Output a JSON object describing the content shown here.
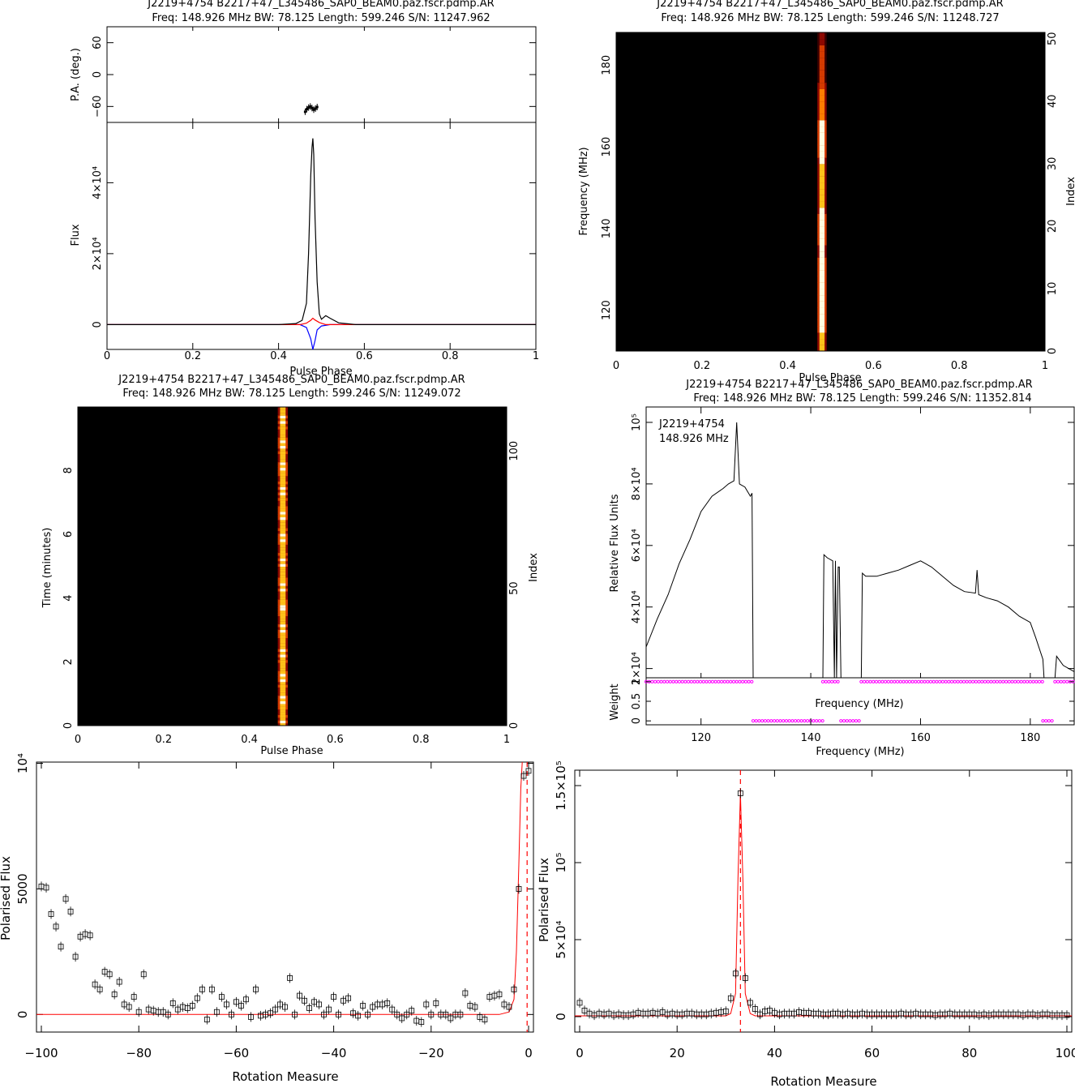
{
  "colors": {
    "axis": "#000000",
    "total_intensity": "#000000",
    "linear": "#ff0000",
    "circular": "#0000ff",
    "weight_marker": "#ff00ff",
    "model_curve": "#ff0000",
    "colormap": [
      "#000000",
      "#3a0000",
      "#8c0800",
      "#d43a00",
      "#ff7d00",
      "#ffc21a",
      "#ffffe0"
    ]
  },
  "chart_data": [
    {
      "id": "profile",
      "type": "line",
      "title": "J2219+4754  B2217+47_L345486_SAP0_BEAM0.paz.fscr.pdmp.AR",
      "subtitle": "Freq: 148.926 MHz BW: 78.125 Length: 599.246 S/N: 11247.962",
      "xlabel": "Pulse Phase",
      "ylabel": "Flux",
      "pa_ylabel": "P.A. (deg.)",
      "xlim": [
        0,
        1
      ],
      "ylim": [
        -7000,
        57000
      ],
      "pa_ylim": [
        -90,
        90
      ],
      "xticks": [
        "0",
        "0.2",
        "0.4",
        "0.6",
        "0.8",
        "1"
      ],
      "yticks": [
        "0",
        "2×10⁴",
        "4×10⁴"
      ],
      "pa_yticks": [
        "−60",
        "0",
        "60"
      ],
      "series": [
        {
          "key": "I",
          "x": [
            0,
            0.4,
            0.44,
            0.455,
            0.465,
            0.47,
            0.475,
            0.478,
            0.48,
            0.482,
            0.485,
            0.49,
            0.495,
            0.5,
            0.51,
            0.52,
            0.54,
            0.58,
            1
          ],
          "y": [
            0,
            0,
            300,
            1200,
            6000,
            20000,
            42000,
            50000,
            52500,
            48000,
            30000,
            12000,
            3000,
            1500,
            2500,
            1800,
            500,
            0,
            0
          ]
        },
        {
          "key": "L",
          "x": [
            0,
            0.45,
            0.465,
            0.475,
            0.48,
            0.485,
            0.495,
            0.51,
            1
          ],
          "y": [
            0,
            0,
            400,
            1200,
            1800,
            1300,
            600,
            0,
            0
          ]
        },
        {
          "key": "V",
          "x": [
            0,
            0.45,
            0.465,
            0.475,
            0.48,
            0.485,
            0.49,
            0.5,
            0.52,
            1
          ],
          "y": [
            0,
            0,
            -800,
            -4000,
            -7000,
            -4500,
            -1500,
            -400,
            0,
            0
          ]
        }
      ],
      "pa": {
        "x": [
          0.462,
          0.466,
          0.47,
          0.474,
          0.478,
          0.482,
          0.486,
          0.49
        ],
        "y": [
          -70,
          -65,
          -62,
          -60,
          -63,
          -66,
          -64,
          -61
        ]
      }
    },
    {
      "id": "freq_phase",
      "type": "heatmap",
      "title": "J2219+4754  B2217+47_L345486_SAP0_BEAM0.paz.fscr.pdmp.AR",
      "subtitle": "Freq: 148.926 MHz BW: 78.125 Length: 599.246 S/N: 11248.727",
      "xlabel": "Pulse Phase",
      "ylabel": "Frequency (MHz)",
      "y2label": "Index",
      "xlim": [
        0,
        1
      ],
      "ylim": [
        110,
        188
      ],
      "y2lim": [
        0,
        51
      ],
      "xticks": [
        "0",
        "0.2",
        "0.4",
        "0.6",
        "0.8",
        "1"
      ],
      "yticks": [
        "120",
        "140",
        "160",
        "180"
      ],
      "y2ticks": [
        "0",
        "10",
        "20",
        "30",
        "40",
        "50"
      ],
      "pulse_phase": 0.48,
      "pulse_width": 0.012,
      "row_intensity": [
        0.85,
        0.85,
        0.9,
        0.95,
        1,
        1,
        1,
        1,
        1,
        0.98,
        0.97,
        0.96,
        0.95,
        0.94,
        0.93,
        0.92,
        0.92,
        0.93,
        0.94,
        0.95,
        0.94,
        0.93,
        0.92,
        0.9,
        0.88,
        0.86,
        0.85,
        0.86,
        0.88,
        0.9,
        0.92,
        0.93,
        0.94,
        0.95,
        0.96,
        0.96,
        0.95,
        0.7,
        0.65,
        0.65,
        0.62,
        0.6,
        0.58,
        0.55,
        0.52,
        0.5,
        0.48,
        0.45,
        0.42,
        0.4,
        0.38
      ]
    },
    {
      "id": "time_phase",
      "type": "heatmap",
      "title": "J2219+4754  B2217+47_L345486_SAP0_BEAM0.paz.fscr.pdmp.AR",
      "subtitle": "Freq: 148.926 MHz BW: 78.125 Length: 599.246 S/N: 11249.072",
      "xlabel": "Pulse Phase",
      "ylabel": "Time (minutes)",
      "y2label": "Index",
      "xlim": [
        0,
        1
      ],
      "ylim": [
        0,
        9.99
      ],
      "y2lim": [
        0,
        116
      ],
      "xticks": [
        "0",
        "0.2",
        "0.4",
        "0.6",
        "0.8",
        "1"
      ],
      "yticks": [
        "0",
        "2",
        "4",
        "6",
        "8"
      ],
      "y2ticks": [
        "0",
        "50",
        "100"
      ],
      "pulse_phase": 0.478,
      "pulse_width": 0.013,
      "n_rows": 116
    },
    {
      "id": "bandpass",
      "type": "line",
      "title": "J2219+4754  B2217+47_L345486_SAP0_BEAM0.paz.fscr.pdmp.AR",
      "subtitle": "Freq: 148.926 MHz BW: 78.125 Length: 599.246 S/N: 11352.814",
      "annotation": [
        "J2219+4754",
        "148.926 MHz"
      ],
      "xlabel": "Frequency (MHz)",
      "ylabel": "Relative Flux Units",
      "weight_label": "Weight",
      "weight_xlabel": "Frequency (MHz)",
      "xlim": [
        110,
        188
      ],
      "ylim": [
        17000,
        105000
      ],
      "weight_ylim": [
        -0.1,
        1.1
      ],
      "xticks": [
        "120",
        "140",
        "160",
        "180"
      ],
      "yticks": [
        "2×10⁴",
        "4×10⁴",
        "6×10⁴",
        "8×10⁴",
        "10⁵"
      ],
      "weight_yticks": [
        "0",
        "0.5",
        "1"
      ],
      "segments": [
        {
          "x": [
            110,
            112,
            114,
            116,
            118,
            120,
            122,
            124,
            125,
            126,
            126.5,
            127,
            128,
            129,
            129.3,
            129.5
          ],
          "y": [
            27000,
            36000,
            44000,
            54000,
            62000,
            71000,
            76000,
            78500,
            80000,
            81000,
            100000,
            80000,
            79000,
            76000,
            77000,
            17000
          ]
        },
        {
          "x": [
            142.2,
            142.4,
            143,
            144,
            144.3,
            144.5,
            144.7,
            145,
            145.2,
            145.5
          ],
          "y": [
            17000,
            57000,
            56000,
            55000,
            17000,
            55000,
            17000,
            53000,
            53000,
            17000
          ]
        },
        {
          "x": [
            149.2,
            149.4,
            150,
            152,
            154,
            156,
            158,
            160,
            162,
            164,
            166,
            168,
            170,
            170.3,
            170.6,
            172,
            174,
            176,
            178,
            180,
            181,
            182.3,
            182.5
          ],
          "y": [
            17000,
            51000,
            50000,
            50000,
            51000,
            52000,
            53500,
            55000,
            53000,
            50000,
            47000,
            45000,
            44500,
            52000,
            44000,
            43000,
            42000,
            40000,
            37000,
            35000,
            30000,
            23000,
            17000
          ]
        },
        {
          "x": [
            184.5,
            184.8,
            186,
            188
          ],
          "y": [
            17000,
            24000,
            21000,
            19000
          ]
        }
      ],
      "weights": {
        "ones": [
          [
            110,
            129.5
          ],
          [
            142.2,
            145.5
          ],
          [
            149.2,
            182.3
          ],
          [
            184.5,
            188
          ]
        ],
        "zeros": [
          [
            129.5,
            142.2
          ],
          [
            145.5,
            149.2
          ],
          [
            182.3,
            184.5
          ]
        ]
      }
    },
    {
      "id": "rm_neg",
      "type": "scatter",
      "xlabel": "Rotation Measure",
      "ylabel": "Polarised Flux",
      "xlim": [
        -101,
        1
      ],
      "ylim": [
        -700,
        10050
      ],
      "xticks": [
        "−100",
        "−80",
        "−60",
        "−40",
        "−20",
        "0"
      ],
      "yticks": [
        "0",
        "5000",
        "10⁴"
      ],
      "vline": -0.3,
      "x": [
        -100,
        -99,
        -98,
        -97,
        -96,
        -95,
        -94,
        -93,
        -92,
        -91,
        -90,
        -89,
        -88,
        -87,
        -86,
        -85,
        -84,
        -83,
        -82,
        -81,
        -80,
        -79,
        -78,
        -77,
        -76,
        -75,
        -74,
        -73,
        -72,
        -71,
        -70,
        -69,
        -68,
        -67,
        -66,
        -65,
        -64,
        -63,
        -62,
        -61,
        -60,
        -59,
        -58,
        -57,
        -56,
        -55,
        -54,
        -53,
        -52,
        -51,
        -50,
        -49,
        -48,
        -47,
        -46,
        -45,
        -44,
        -43,
        -42,
        -41,
        -40,
        -39,
        -38,
        -37,
        -36,
        -35,
        -34,
        -33,
        -32,
        -31,
        -30,
        -29,
        -28,
        -27,
        -26,
        -25,
        -24,
        -23,
        -22,
        -21,
        -20,
        -19,
        -18,
        -17,
        -16,
        -15,
        -14,
        -13,
        -12,
        -11,
        -10,
        -9,
        -8,
        -7,
        -6,
        -5,
        -4,
        -3,
        -2,
        -1,
        0
      ],
      "y": [
        5100,
        5050,
        4000,
        3500,
        2700,
        4600,
        4100,
        2300,
        3100,
        3200,
        3150,
        1200,
        1000,
        1700,
        1600,
        800,
        1300,
        400,
        300,
        700,
        100,
        1600,
        200,
        150,
        100,
        100,
        0,
        450,
        200,
        300,
        250,
        350,
        650,
        1000,
        -200,
        1000,
        100,
        700,
        400,
        0,
        500,
        350,
        600,
        -100,
        1000,
        -50,
        0,
        50,
        200,
        400,
        300,
        1450,
        0,
        750,
        550,
        250,
        500,
        400,
        0,
        200,
        700,
        0,
        550,
        650,
        50,
        -50,
        350,
        0,
        300,
        400,
        400,
        450,
        200,
        0,
        -150,
        0,
        150,
        -250,
        -300,
        400,
        0,
        450,
        0,
        0,
        -150,
        0,
        0,
        850,
        350,
        300,
        -100,
        -200,
        700,
        750,
        800,
        400,
        300,
        1000,
        5000,
        9500,
        9700
      ],
      "model": {
        "x": [
          -101,
          -6,
          -4,
          -3,
          -2.5,
          -2,
          -1.6,
          -1.3
        ],
        "y": [
          0,
          0,
          100,
          600,
          2500,
          6000,
          9000,
          10050
        ]
      }
    },
    {
      "id": "rm_pos",
      "type": "scatter",
      "xlabel": "Rotation Measure",
      "ylabel": "Polarised Flux",
      "xlim": [
        -1,
        101
      ],
      "ylim": [
        -10000,
        160000
      ],
      "xticks": [
        "0",
        "20",
        "40",
        "60",
        "80",
        "100"
      ],
      "yticks": [
        "0",
        "5×10⁴",
        "10⁵",
        "1.5×10⁵"
      ],
      "vline": 33,
      "x": [
        0,
        1,
        2,
        3,
        4,
        5,
        6,
        7,
        8,
        9,
        10,
        11,
        12,
        13,
        14,
        15,
        16,
        17,
        18,
        19,
        20,
        21,
        22,
        23,
        24,
        25,
        26,
        27,
        28,
        29,
        30,
        31,
        32,
        33,
        34,
        35,
        36,
        37,
        38,
        39,
        40,
        41,
        42,
        43,
        44,
        45,
        46,
        47,
        48,
        49,
        50,
        51,
        52,
        53,
        54,
        55,
        56,
        57,
        58,
        59,
        60,
        61,
        62,
        63,
        64,
        65,
        66,
        67,
        68,
        69,
        70,
        71,
        72,
        73,
        74,
        75,
        76,
        77,
        78,
        79,
        80,
        81,
        82,
        83,
        84,
        85,
        86,
        87,
        88,
        89,
        90,
        91,
        92,
        93,
        94,
        95,
        96,
        97,
        98,
        99,
        100
      ],
      "y": [
        9000,
        4000,
        2000,
        1000,
        2000,
        1500,
        2000,
        1000,
        1500,
        1000,
        1000,
        1500,
        2500,
        2000,
        2000,
        2500,
        2000,
        3000,
        1500,
        2000,
        1500,
        1500,
        2000,
        2000,
        1500,
        1500,
        1500,
        2000,
        2500,
        3000,
        3500,
        12000,
        28000,
        145000,
        25000,
        9000,
        5000,
        1500,
        3500,
        4000,
        2500,
        1500,
        2000,
        2000,
        2000,
        3000,
        2500,
        2500,
        2000,
        2000,
        1500,
        1500,
        2000,
        2000,
        1500,
        2000,
        1500,
        1500,
        2000,
        1500,
        1500,
        1500,
        1500,
        1500,
        1500,
        1500,
        2000,
        1500,
        1500,
        2000,
        1500,
        1500,
        1500,
        1000,
        1500,
        1500,
        2000,
        1500,
        1500,
        1500,
        1500,
        1500,
        1000,
        1500,
        1000,
        1500,
        1500,
        1500,
        1500,
        1500,
        1500,
        1000,
        1500,
        1500,
        1000,
        1500,
        1500,
        1000,
        1000,
        1000,
        1000
      ],
      "model": {
        "x": [
          -1,
          30,
          31,
          32,
          32.5,
          33,
          33.5,
          34,
          35,
          36,
          101
        ],
        "y": [
          500,
          500,
          2000,
          15000,
          90000,
          145000,
          90000,
          15000,
          2000,
          500,
          500
        ]
      }
    }
  ]
}
